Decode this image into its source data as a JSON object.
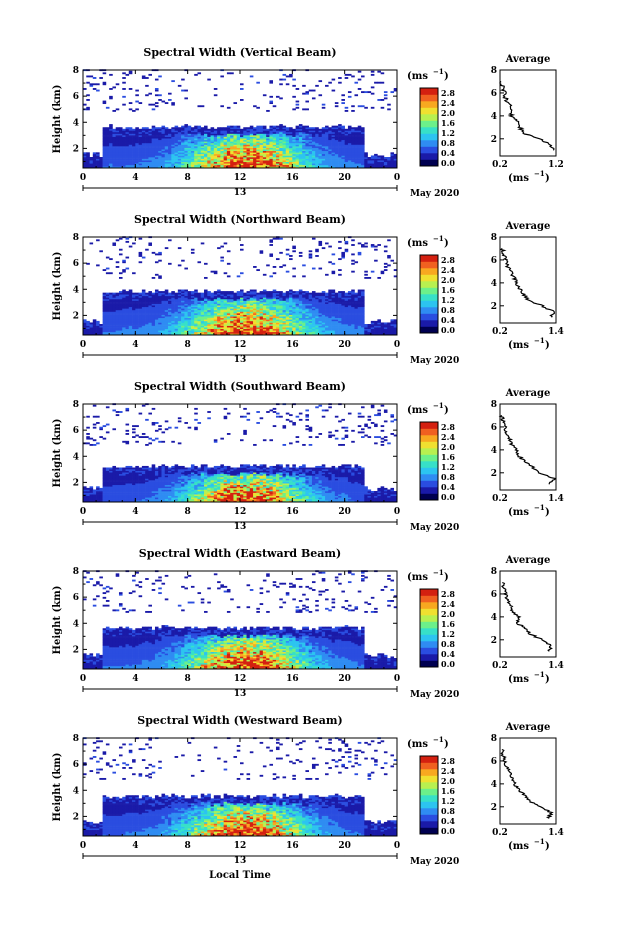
{
  "figure": {
    "date_label": "May 2020",
    "shared_xlabel": "Local Time",
    "colorbar_unit": "(ms",
    "colorbar_unit_sup": "−1",
    "colorbar_unit_end": ")",
    "colorbar_ticks": [
      "2.8",
      "2.4",
      "2.0",
      "1.6",
      "1.2",
      "0.8",
      "0.4",
      "0.0"
    ],
    "colorbar_colors": [
      "#000050",
      "#1a1aa8",
      "#2a4de0",
      "#2f8cf2",
      "#2cc4f0",
      "#37e0c8",
      "#6cf08a",
      "#b8f050",
      "#f0e030",
      "#f8a820",
      "#f06020",
      "#d42010"
    ],
    "profile_title": "Average",
    "profile_xlabel": "(ms",
    "profile_xlabel_sup": "−1",
    "profile_xlabel_end": ")"
  },
  "chart_data": [
    {
      "type": "heatmap",
      "title": "Spectral Width (Vertical Beam)",
      "ylabel": "Height (km)",
      "xlabel": "",
      "xlim": [
        0,
        24
      ],
      "ylim": [
        0.5,
        8
      ],
      "x_ticks": [
        "0",
        "4",
        "8",
        "12",
        "16",
        "20",
        "0"
      ],
      "y_ticks": [
        "2",
        "4",
        "6",
        "8"
      ],
      "day_label": "13",
      "value_range": [
        0,
        2.8
      ],
      "layer_top_km": 3.6,
      "profile": {
        "title": "Average",
        "xlim": [
          0.2,
          1.2
        ],
        "x_ticks": [
          "0.2",
          "1.2"
        ],
        "y_ticks": [
          "2",
          "4",
          "6",
          "8"
        ],
        "ylim": [
          0.5,
          8
        ],
        "height_km": [
          1.0,
          1.5,
          2.0,
          2.5,
          3.0,
          3.5,
          4.0,
          4.5,
          5.0,
          5.5,
          6.0,
          6.5,
          7.0
        ],
        "avg_ms": [
          1.15,
          1.1,
          0.9,
          0.62,
          0.55,
          0.5,
          0.4,
          0.42,
          0.36,
          0.3,
          0.28,
          0.24,
          0.22
        ]
      }
    },
    {
      "type": "heatmap",
      "title": "Spectral Width (Northward Beam)",
      "ylabel": "Height (km)",
      "xlabel": "",
      "xlim": [
        0,
        24
      ],
      "ylim": [
        0.5,
        8
      ],
      "x_ticks": [
        "0",
        "4",
        "8",
        "12",
        "16",
        "20",
        "0"
      ],
      "y_ticks": [
        "2",
        "4",
        "6",
        "8"
      ],
      "day_label": "13",
      "value_range": [
        0,
        2.8
      ],
      "layer_top_km": 3.8,
      "profile": {
        "title": "Average",
        "xlim": [
          0.2,
          1.4
        ],
        "x_ticks": [
          "0.2",
          "1.4"
        ],
        "y_ticks": [
          "2",
          "4",
          "6",
          "8"
        ],
        "ylim": [
          0.5,
          8
        ],
        "height_km": [
          1.0,
          1.5,
          2.0,
          2.5,
          3.0,
          3.5,
          4.0,
          4.5,
          5.0,
          5.5,
          6.0,
          6.5,
          7.0
        ],
        "avg_ms": [
          1.3,
          1.35,
          1.1,
          0.8,
          0.7,
          0.62,
          0.55,
          0.5,
          0.42,
          0.36,
          0.32,
          0.28,
          0.25
        ]
      }
    },
    {
      "type": "heatmap",
      "title": "Spectral Width (Southward Beam)",
      "ylabel": "Height (km)",
      "xlabel": "",
      "xlim": [
        0,
        24
      ],
      "ylim": [
        0.5,
        8
      ],
      "x_ticks": [
        "0",
        "4",
        "8",
        "12",
        "16",
        "20",
        "0"
      ],
      "y_ticks": [
        "2",
        "4",
        "6",
        "8"
      ],
      "day_label": "13",
      "value_range": [
        0,
        2.8
      ],
      "layer_top_km": 3.2,
      "profile": {
        "title": "Average",
        "xlim": [
          0.2,
          1.4
        ],
        "x_ticks": [
          "0.2",
          "1.4"
        ],
        "y_ticks": [
          "2",
          "4",
          "6",
          "8"
        ],
        "ylim": [
          0.5,
          8
        ],
        "height_km": [
          1.0,
          1.5,
          2.0,
          2.5,
          3.0,
          3.5,
          4.0,
          4.5,
          5.0,
          5.5,
          6.0,
          6.5,
          7.0
        ],
        "avg_ms": [
          1.25,
          1.35,
          1.05,
          0.9,
          0.72,
          0.6,
          0.55,
          0.45,
          0.4,
          0.34,
          0.3,
          0.26,
          0.24
        ]
      }
    },
    {
      "type": "heatmap",
      "title": "Spectral Width (Eastward Beam)",
      "ylabel": "Height (km)",
      "xlabel": "",
      "xlim": [
        0,
        24
      ],
      "ylim": [
        0.5,
        8
      ],
      "x_ticks": [
        "0",
        "4",
        "8",
        "12",
        "16",
        "20",
        "0"
      ],
      "y_ticks": [
        "2",
        "4",
        "6",
        "8"
      ],
      "day_label": "13",
      "value_range": [
        0,
        2.8
      ],
      "layer_top_km": 3.6,
      "profile": {
        "title": "Average",
        "xlim": [
          0.2,
          1.4
        ],
        "x_ticks": [
          "0.2",
          "1.4"
        ],
        "y_ticks": [
          "2",
          "4",
          "6",
          "8"
        ],
        "ylim": [
          0.5,
          8
        ],
        "height_km": [
          1.0,
          1.5,
          2.0,
          2.5,
          3.0,
          3.5,
          4.0,
          4.5,
          5.0,
          5.5,
          6.0,
          6.5,
          7.0
        ],
        "avg_ms": [
          1.25,
          1.3,
          1.1,
          0.85,
          0.75,
          0.55,
          0.6,
          0.48,
          0.42,
          0.36,
          0.32,
          0.28,
          0.25
        ]
      }
    },
    {
      "type": "heatmap",
      "title": "Spectral Width (Westward Beam)",
      "ylabel": "Height (km)",
      "xlabel": "Local Time",
      "xlim": [
        0,
        24
      ],
      "ylim": [
        0.5,
        8
      ],
      "x_ticks": [
        "0",
        "4",
        "8",
        "12",
        "16",
        "20",
        "0"
      ],
      "y_ticks": [
        "2",
        "4",
        "6",
        "8"
      ],
      "day_label": "13",
      "value_range": [
        0,
        2.8
      ],
      "layer_top_km": 3.5,
      "profile": {
        "title": "Average",
        "xlim": [
          0.2,
          1.4
        ],
        "x_ticks": [
          "0.2",
          "1.4"
        ],
        "y_ticks": [
          "2",
          "4",
          "6",
          "8"
        ],
        "ylim": [
          0.5,
          8
        ],
        "height_km": [
          1.0,
          1.5,
          2.0,
          2.5,
          3.0,
          3.5,
          4.0,
          4.5,
          5.0,
          5.5,
          6.0,
          6.5,
          7.0
        ],
        "avg_ms": [
          1.25,
          1.3,
          1.05,
          0.85,
          0.72,
          0.6,
          0.52,
          0.46,
          0.4,
          0.35,
          0.3,
          0.27,
          0.24
        ]
      }
    }
  ]
}
